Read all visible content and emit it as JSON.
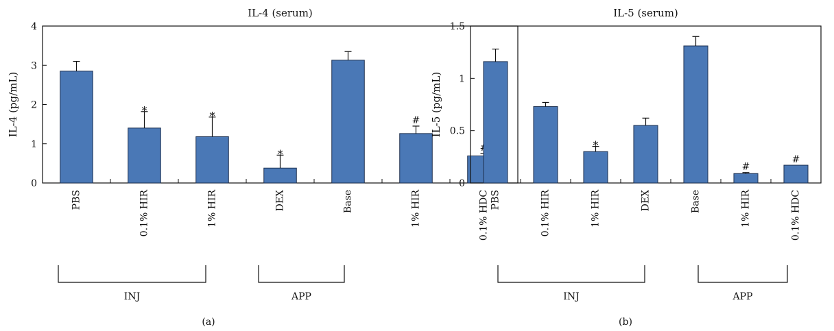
{
  "figure": {
    "panel_labels": [
      "(a)",
      "(b)"
    ]
  },
  "chart_data": [
    {
      "type": "bar",
      "title": "IL-4 (serum)",
      "xlabel": "",
      "ylabel": "IL-4 (pg/mL)",
      "ylim": [
        0,
        4
      ],
      "yticks": [
        0,
        1,
        2,
        3,
        4
      ],
      "ytick_labels": [
        "0",
        "1",
        "2",
        "3",
        "4"
      ],
      "categories": [
        "PBS",
        "0.1% HIR",
        "1% HIR",
        "DEX",
        "Base",
        "1% HIR",
        "0.1% HDC"
      ],
      "values": [
        2.85,
        1.4,
        1.18,
        0.38,
        3.13,
        1.26,
        0.69
      ],
      "errors": [
        0.25,
        0.42,
        0.5,
        0.33,
        0.22,
        0.19,
        0.06
      ],
      "significance": [
        "",
        "*",
        "*",
        "*",
        "",
        "#",
        "#"
      ],
      "groups": [
        {
          "label": "INJ",
          "from": 0,
          "to": 3
        },
        {
          "label": "APP",
          "from": 4,
          "to": 5
        }
      ],
      "grid": false,
      "bar_color": "#4a78b6"
    },
    {
      "type": "bar",
      "title": "IL-5 (serum)",
      "xlabel": "",
      "ylabel": "IL-5 (pg/mL)",
      "ylim": [
        0,
        1.5
      ],
      "yticks": [
        0,
        0.5,
        1,
        1.5
      ],
      "ytick_labels": [
        "0",
        "0.5",
        "1",
        "1.5"
      ],
      "categories": [
        "PBS",
        "0.1% HIR",
        "1% HIR",
        "DEX",
        "Base",
        "1% HIR",
        "0.1% HDC"
      ],
      "values": [
        1.16,
        0.73,
        0.3,
        0.55,
        1.31,
        0.09,
        0.17
      ],
      "errors": [
        0.12,
        0.04,
        0.05,
        0.07,
        0.09,
        0.01,
        0.0
      ],
      "significance": [
        "",
        "",
        "*",
        "",
        "",
        "#",
        "#"
      ],
      "groups": [
        {
          "label": "INJ",
          "from": 0,
          "to": 3
        },
        {
          "label": "APP",
          "from": 4,
          "to": 5
        }
      ],
      "grid": false,
      "bar_color": "#4a78b6"
    }
  ]
}
